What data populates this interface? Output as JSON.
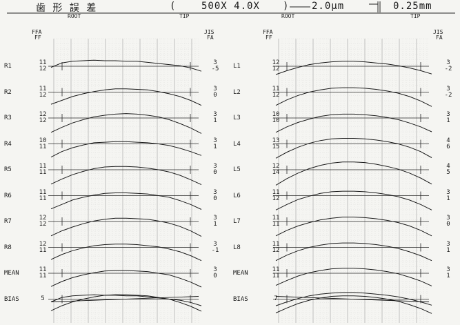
{
  "header": {
    "title": "歯 形 誤 差",
    "paren_open": "(",
    "magnification": "500X  4.0X",
    "paren_close": ")",
    "scale_value": "2.0μm",
    "scale_right": "0.25mm",
    "axis_root": "ROOT",
    "axis_tip": "TIP"
  },
  "left_panel": {
    "col_head_left_1": "FFA",
    "col_head_left_2": "FF",
    "col_head_right_1": "JIS",
    "col_head_right_2": "FA",
    "rows": [
      {
        "label": "R1",
        "left_top": "11",
        "left_bot": "12",
        "right_top": "3",
        "right_bot": "-5",
        "trace": [
          0.2,
          -0.6,
          -0.9,
          -1.0,
          -1.1,
          -1.0,
          -1.0,
          -0.9,
          -0.9,
          -0.7,
          -0.5,
          -0.3,
          -0.1,
          0.3,
          0.9
        ]
      },
      {
        "label": "R2",
        "left_top": "11",
        "left_bot": "12",
        "right_top": "3",
        "right_bot": "0",
        "trace": [
          2.2,
          1.5,
          0.8,
          0.3,
          -0.1,
          -0.4,
          -0.6,
          -0.6,
          -0.5,
          -0.4,
          -0.1,
          0.3,
          0.8,
          1.5,
          2.4
        ]
      },
      {
        "label": "R3",
        "left_top": "12",
        "left_bot": "12",
        "right_top": "3",
        "right_bot": "1",
        "trace": [
          2.6,
          1.7,
          0.9,
          0.3,
          -0.2,
          -0.5,
          -0.7,
          -0.8,
          -0.7,
          -0.5,
          -0.2,
          0.3,
          1.0,
          1.8,
          2.8
        ]
      },
      {
        "label": "R4",
        "left_top": "10",
        "left_bot": "11",
        "right_top": "3",
        "right_bot": "1",
        "trace": [
          2.4,
          1.4,
          0.7,
          0.2,
          -0.2,
          -0.3,
          -0.4,
          -0.4,
          -0.3,
          -0.2,
          0.0,
          0.3,
          0.8,
          1.4,
          2.1
        ]
      },
      {
        "label": "R5",
        "left_top": "11",
        "left_bot": "11",
        "right_top": "3",
        "right_bot": "0",
        "trace": [
          2.6,
          1.7,
          0.9,
          0.3,
          -0.2,
          -0.5,
          -0.6,
          -0.6,
          -0.5,
          -0.3,
          0.0,
          0.4,
          1.0,
          1.8,
          2.7
        ]
      },
      {
        "label": "R6",
        "left_top": "11",
        "left_bot": "11",
        "right_top": "3",
        "right_bot": "0",
        "trace": [
          2.4,
          1.6,
          0.8,
          0.3,
          -0.1,
          -0.4,
          -0.5,
          -0.5,
          -0.4,
          -0.3,
          0.0,
          0.3,
          0.9,
          1.6,
          2.5
        ]
      },
      {
        "label": "R7",
        "left_top": "12",
        "left_bot": "12",
        "right_top": "3",
        "right_bot": "1",
        "trace": [
          2.6,
          1.7,
          1.0,
          0.4,
          -0.1,
          -0.4,
          -0.6,
          -0.6,
          -0.5,
          -0.4,
          -0.1,
          0.3,
          0.9,
          1.7,
          2.7
        ]
      },
      {
        "label": "R8",
        "left_top": "12",
        "left_bot": "11",
        "right_top": "3",
        "right_bot": "-1",
        "trace": [
          2.2,
          1.3,
          0.6,
          0.1,
          -0.3,
          -0.5,
          -0.6,
          -0.6,
          -0.5,
          -0.3,
          -0.1,
          0.3,
          0.8,
          1.5,
          2.4
        ]
      },
      {
        "label": "MEAN",
        "left_top": "11",
        "left_bot": "11",
        "right_top": "3",
        "right_bot": "0",
        "trace": [
          2.4,
          1.5,
          0.8,
          0.3,
          -0.1,
          -0.4,
          -0.5,
          -0.5,
          -0.4,
          -0.3,
          0.0,
          0.3,
          0.9,
          1.6,
          2.5
        ]
      }
    ],
    "bias": {
      "label": "BIAS",
      "value": "5"
    }
  },
  "right_panel": {
    "col_head_left_1": "FFA",
    "col_head_left_2": "FF",
    "col_head_right_1": "JIS",
    "col_head_right_2": "FA",
    "rows": [
      {
        "label": "L1",
        "left_top": "12",
        "left_bot": "12",
        "right_top": "3",
        "right_bot": "-2",
        "trace": [
          -1.5,
          -0.8,
          -0.2,
          0.3,
          0.6,
          0.8,
          0.9,
          0.9,
          0.8,
          0.6,
          0.4,
          0.1,
          -0.3,
          -0.8,
          -1.4
        ]
      },
      {
        "label": "L2",
        "left_top": "11",
        "left_bot": "12",
        "right_top": "3",
        "right_bot": "-2",
        "trace": [
          -2.4,
          -1.4,
          -0.6,
          0.0,
          0.4,
          0.7,
          0.8,
          0.8,
          0.7,
          0.5,
          0.2,
          -0.2,
          -0.8,
          -1.6,
          -2.6
        ]
      },
      {
        "label": "L3",
        "left_top": "10",
        "left_bot": "10",
        "right_top": "3",
        "right_bot": "1",
        "trace": [
          -2.6,
          -1.6,
          -0.8,
          -0.2,
          0.3,
          0.6,
          0.7,
          0.7,
          0.6,
          0.4,
          0.1,
          -0.3,
          -0.9,
          -1.6,
          -2.5
        ]
      },
      {
        "label": "L4",
        "left_top": "13",
        "left_bot": "15",
        "right_top": "4",
        "right_bot": "6",
        "trace": [
          -2.6,
          -1.5,
          -0.6,
          0.1,
          0.6,
          0.9,
          1.0,
          1.0,
          0.9,
          0.7,
          0.4,
          0.0,
          -0.6,
          -1.4,
          -2.5
        ]
      },
      {
        "label": "L5",
        "left_top": "12",
        "left_bot": "14",
        "right_top": "4",
        "right_bot": "5",
        "trace": [
          -2.8,
          -1.6,
          -0.6,
          0.2,
          0.8,
          1.2,
          1.4,
          1.4,
          1.3,
          1.0,
          0.6,
          0.1,
          -0.6,
          -1.5,
          -2.6
        ]
      },
      {
        "label": "L6",
        "left_top": "11",
        "left_bot": "12",
        "right_top": "3",
        "right_bot": "1",
        "trace": [
          -2.6,
          -1.6,
          -0.7,
          -0.1,
          0.4,
          0.7,
          0.8,
          0.8,
          0.7,
          0.5,
          0.2,
          -0.2,
          -0.8,
          -1.6,
          -2.6
        ]
      },
      {
        "label": "L7",
        "left_top": "11",
        "left_bot": "11",
        "right_top": "3",
        "right_bot": "0",
        "trace": [
          -2.6,
          -1.6,
          -0.8,
          -0.2,
          0.3,
          0.6,
          0.8,
          0.8,
          0.7,
          0.5,
          0.2,
          -0.2,
          -0.8,
          -1.6,
          -2.6
        ]
      },
      {
        "label": "L8",
        "left_top": "11",
        "left_bot": "12",
        "right_top": "3",
        "right_bot": "1",
        "trace": [
          -2.4,
          -1.4,
          -0.6,
          0.0,
          0.4,
          0.7,
          0.8,
          0.8,
          0.7,
          0.5,
          0.2,
          -0.2,
          -0.8,
          -1.5,
          -2.4
        ]
      },
      {
        "label": "MEAN",
        "left_top": "11",
        "left_bot": "11",
        "right_top": "3",
        "right_bot": "1",
        "trace": [
          -2.2,
          -1.3,
          -0.5,
          0.1,
          0.5,
          0.8,
          0.9,
          0.9,
          0.8,
          0.6,
          0.3,
          -0.1,
          -0.7,
          -1.4,
          -2.3
        ]
      }
    ],
    "bias": {
      "label": "BIAS",
      "value": "7"
    }
  },
  "chart_data": [
    {
      "type": "line",
      "x_start_label": "ROOT",
      "x_end_label": "TIP",
      "series": [
        {
          "name": "R1"
        },
        {
          "name": "R2"
        },
        {
          "name": "R3"
        },
        {
          "name": "R4"
        },
        {
          "name": "R5"
        },
        {
          "name": "R6"
        },
        {
          "name": "R7"
        },
        {
          "name": "R8"
        },
        {
          "name": "MEAN"
        }
      ],
      "grid": true
    },
    {
      "type": "line",
      "x_start_label": "ROOT",
      "x_end_label": "TIP",
      "series": [
        {
          "name": "L1"
        },
        {
          "name": "L2"
        },
        {
          "name": "L3"
        },
        {
          "name": "L4"
        },
        {
          "name": "L5"
        },
        {
          "name": "L6"
        },
        {
          "name": "L7"
        },
        {
          "name": "L8"
        },
        {
          "name": "MEAN"
        }
      ],
      "grid": true
    }
  ]
}
